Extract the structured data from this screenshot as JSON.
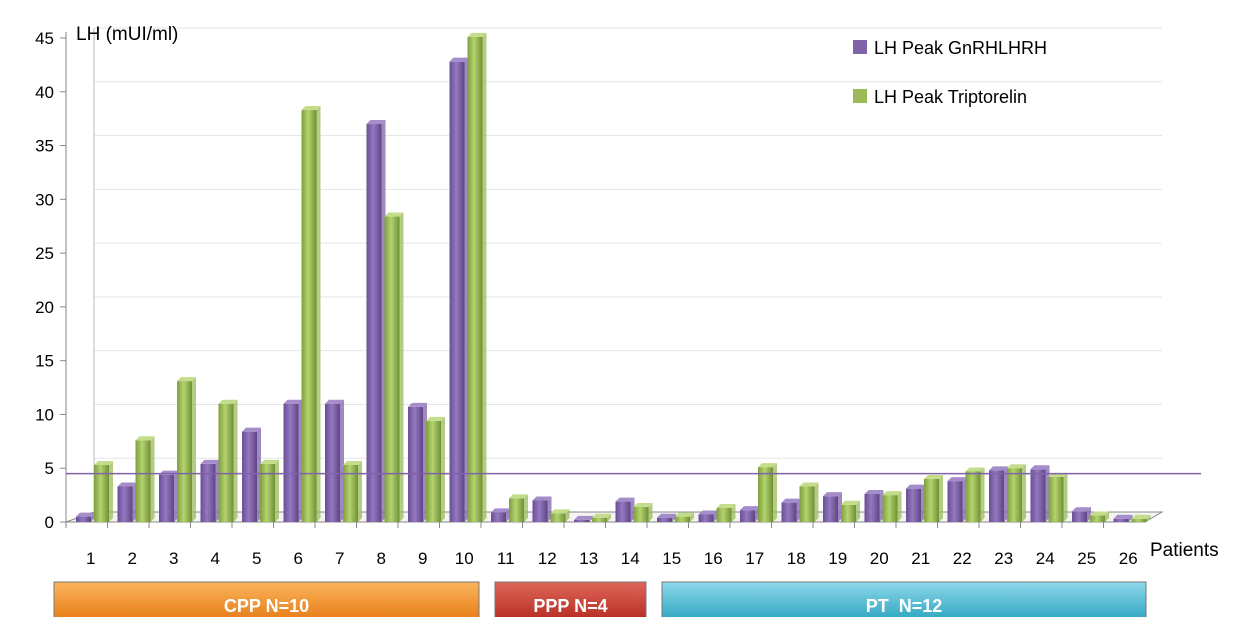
{
  "chart_data": {
    "type": "bar",
    "ylabel": "LH (mUI/ml)",
    "xlabel": "Patients",
    "ylim": [
      0,
      45
    ],
    "yticks": [
      0,
      5,
      10,
      15,
      20,
      25,
      30,
      35,
      40,
      45
    ],
    "grid": true,
    "legend_position": "top-right",
    "categories": [
      "1",
      "2",
      "3",
      "4",
      "5",
      "6",
      "7",
      "8",
      "9",
      "10",
      "11",
      "12",
      "13",
      "14",
      "15",
      "16",
      "17",
      "18",
      "19",
      "20",
      "21",
      "22",
      "23",
      "24",
      "25",
      "26"
    ],
    "series": [
      {
        "name": "LH Peak GnRHLHRH",
        "color": "#7f62a8",
        "values": [
          0.5,
          3.3,
          4.4,
          5.4,
          8.4,
          11.0,
          11.0,
          37.0,
          10.7,
          42.8,
          0.9,
          2.0,
          0.2,
          1.9,
          0.4,
          0.7,
          1.1,
          1.8,
          2.4,
          2.6,
          3.1,
          3.8,
          4.8,
          4.9,
          1.0,
          0.3
        ]
      },
      {
        "name": "LH Peak Triptorelin",
        "color": "#9bbb59",
        "values": [
          5.3,
          7.6,
          13.1,
          11.0,
          5.4,
          38.3,
          5.3,
          28.4,
          9.4,
          45.1,
          2.2,
          0.8,
          0.4,
          1.4,
          0.5,
          1.3,
          5.1,
          3.3,
          1.6,
          2.5,
          4.0,
          4.7,
          5.0,
          4.2,
          0.6,
          0.3
        ]
      }
    ],
    "reference_line": {
      "value": 4.5,
      "color": "#7f62a8"
    },
    "groups": [
      {
        "label": "CPP N=10",
        "from": "1",
        "to": "10",
        "color": "#f08a24"
      },
      {
        "label": "PPP N=4",
        "from": "11",
        "to": "14",
        "color": "#c0392b"
      },
      {
        "label": "PT  N=12",
        "from": "15",
        "to": "26",
        "color": "#38b2cc"
      }
    ]
  }
}
